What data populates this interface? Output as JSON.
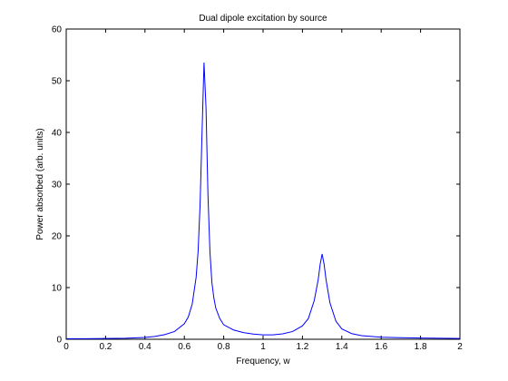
{
  "chart_data": {
    "type": "line",
    "title": "Dual dipole excitation by source",
    "xlabel": "Frequency, w",
    "ylabel": "Power absorbed (arb. units)",
    "xlim": [
      0,
      2
    ],
    "ylim": [
      0,
      60
    ],
    "xticks": [
      0,
      0.2,
      0.4,
      0.6,
      0.8,
      1,
      1.2,
      1.4,
      1.6,
      1.8,
      2
    ],
    "xtick_labels": [
      "0",
      "0.2",
      "0.4",
      "0.6",
      "0.8",
      "1",
      "1.2",
      "1.4",
      "1.6",
      "1.8",
      "2"
    ],
    "yticks": [
      0,
      10,
      20,
      30,
      40,
      50,
      60
    ],
    "ytick_labels": [
      "0",
      "10",
      "20",
      "30",
      "40",
      "50",
      "60"
    ],
    "grid": false,
    "line_color": "#0000ff",
    "series": [
      {
        "x": [
          0,
          0.1,
          0.2,
          0.3,
          0.4,
          0.45,
          0.5,
          0.55,
          0.6,
          0.62,
          0.64,
          0.66,
          0.67,
          0.68,
          0.69,
          0.7,
          0.71,
          0.72,
          0.73,
          0.74,
          0.75,
          0.76,
          0.78,
          0.8,
          0.85,
          0.9,
          0.95,
          1.0,
          1.05,
          1.1,
          1.15,
          1.2,
          1.23,
          1.26,
          1.28,
          1.29,
          1.3,
          1.31,
          1.32,
          1.34,
          1.37,
          1.4,
          1.45,
          1.5,
          1.6,
          1.7,
          1.8,
          1.9,
          2.0
        ],
        "y": [
          0.1,
          0.12,
          0.15,
          0.2,
          0.35,
          0.55,
          0.9,
          1.5,
          3.0,
          4.3,
          6.8,
          12.0,
          17.0,
          26.0,
          40.0,
          53.5,
          45.0,
          28.0,
          17.0,
          11.0,
          8.0,
          6.0,
          4.0,
          2.8,
          1.8,
          1.3,
          1.0,
          0.85,
          0.85,
          1.05,
          1.5,
          2.6,
          4.0,
          7.5,
          11.5,
          14.5,
          16.5,
          14.5,
          11.5,
          7.0,
          3.5,
          2.0,
          1.1,
          0.7,
          0.4,
          0.3,
          0.25,
          0.2,
          0.15
        ]
      }
    ]
  }
}
